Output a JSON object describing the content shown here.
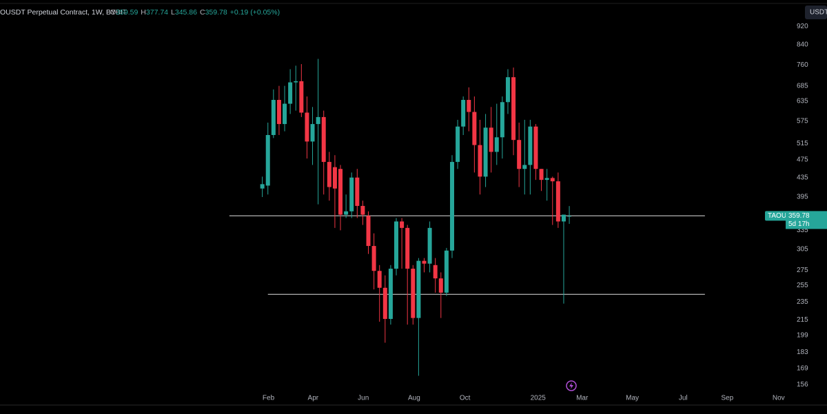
{
  "chart_data": {
    "type": "candlestick",
    "title": "OUSDT Perpetual Contract, 1W, BYBIT",
    "ohlc_labels": [
      "O",
      "H",
      "L",
      "C"
    ],
    "change": "+0.19 (+0.05%)",
    "currency": "USDT",
    "symbol_label": "TAOUSDT.P",
    "countdown": "5d 17h",
    "log_scale": true,
    "grid": false,
    "up_color": "#26a69a",
    "down_color": "#f23645",
    "ylim": [
      141,
      1048
    ],
    "yticks": [
      920,
      840,
      760,
      685,
      635,
      575,
      515,
      475,
      435,
      395,
      335,
      305,
      275,
      255,
      235,
      215,
      199,
      183,
      169,
      156
    ],
    "xlim": [
      -47,
      95
    ],
    "xticks": [
      {
        "value": 1.1,
        "label": "Feb"
      },
      {
        "value": 9.1,
        "label": "Apr"
      },
      {
        "value": 18.1,
        "label": "Jun"
      },
      {
        "value": 27.2,
        "label": "Aug"
      },
      {
        "value": 36.3,
        "label": "Oct"
      },
      {
        "value": 49.4,
        "label": "2025"
      },
      {
        "value": 57.3,
        "label": "Mar"
      },
      {
        "value": 66.3,
        "label": "May"
      },
      {
        "value": 75.4,
        "label": "Jul"
      },
      {
        "value": 83.3,
        "label": "Sep"
      },
      {
        "value": 92.5,
        "label": "Nov"
      }
    ],
    "hlines": [
      {
        "value": 360,
        "x": [
          -5.9,
          79.3
        ]
      },
      {
        "value": 244,
        "x": [
          1.0,
          79.3
        ]
      }
    ],
    "candles": {
      "open": [
        412,
        418,
        537,
        639,
        567,
        627,
        697,
        701,
        600,
        520,
        567,
        587,
        470,
        458,
        454,
        362,
        368,
        435,
        378,
        360,
        310,
        274,
        252,
        216,
        277,
        350,
        339,
        277,
        217,
        288,
        284,
        282,
        264,
        246,
        303,
        470,
        560,
        639,
        602,
        511,
        437,
        557,
        494,
        531,
        632,
        715,
        524,
        454,
        463,
        560,
        454,
        430,
        434,
        427,
        350,
        359.59
      ],
      "high": [
        437,
        571,
        673,
        685,
        685,
        744,
        757,
        763,
        650,
        617,
        783,
        606,
        494,
        486,
        463,
        400,
        446,
        454,
        388,
        368,
        330,
        282,
        268,
        282,
        356,
        356,
        344,
        282,
        292,
        292,
        350,
        292,
        272,
        307,
        486,
        579,
        650,
        680,
        650,
        579,
        596,
        617,
        627,
        650,
        744,
        750,
        571,
        579,
        579,
        567,
        454,
        454,
        437,
        446,
        362,
        377.74
      ],
      "low": [
        395,
        400,
        529,
        537,
        547,
        596,
        606,
        587,
        478,
        463,
        381,
        400,
        388,
        339,
        335,
        356,
        356,
        356,
        344,
        298,
        250,
        213,
        192,
        210,
        268,
        277,
        210,
        210,
        163,
        272,
        272,
        246,
        217,
        242,
        292,
        454,
        537,
        547,
        446,
        400,
        415,
        446,
        463,
        478,
        596,
        486,
        415,
        400,
        400,
        430,
        407,
        388,
        344,
        339,
        233,
        345.86
      ],
      "close": [
        421,
        537,
        639,
        567,
        627,
        697,
        701,
        600,
        520,
        567,
        587,
        470,
        415,
        412,
        362,
        368,
        435,
        378,
        362,
        310,
        274,
        252,
        216,
        277,
        350,
        339,
        277,
        217,
        288,
        284,
        339,
        264,
        246,
        303,
        470,
        560,
        639,
        602,
        511,
        437,
        557,
        494,
        531,
        632,
        715,
        524,
        454,
        463,
        560,
        454,
        430,
        434,
        427,
        350,
        362,
        359.78
      ]
    }
  }
}
